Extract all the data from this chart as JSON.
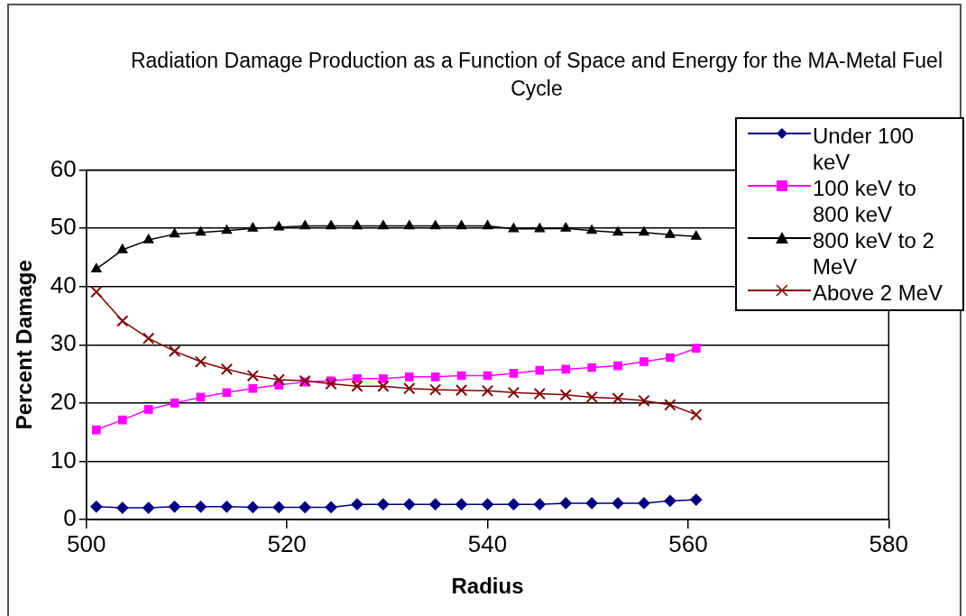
{
  "chart_data": {
    "type": "line",
    "title": "Radiation Damage Production as a Function of Space and Energy for the MA-Metal Fuel Cycle",
    "xlabel": "Radius",
    "ylabel": "Percent Damage",
    "x": [
      501.0,
      503.6,
      506.2,
      508.8,
      511.4,
      514.0,
      516.6,
      519.2,
      521.8,
      524.4,
      527.0,
      529.6,
      532.2,
      534.8,
      537.4,
      540.0,
      542.6,
      545.2,
      547.8,
      550.4,
      553.0,
      555.6,
      558.2,
      560.8
    ],
    "series": [
      {
        "name": "Under 100 keV",
        "color": "#000080",
        "marker": "diamond",
        "values": [
          2.2,
          2.0,
          2.0,
          2.2,
          2.2,
          2.2,
          2.1,
          2.1,
          2.1,
          2.1,
          2.6,
          2.6,
          2.6,
          2.6,
          2.6,
          2.6,
          2.6,
          2.6,
          2.8,
          2.8,
          2.8,
          2.8,
          3.2,
          3.4
        ]
      },
      {
        "name": "100 keV to 800 keV",
        "color": "#ff00ff",
        "marker": "square",
        "values": [
          15.4,
          17.1,
          18.9,
          20.0,
          21.0,
          21.8,
          22.5,
          23.1,
          23.6,
          23.8,
          24.2,
          24.2,
          24.5,
          24.5,
          24.7,
          24.7,
          25.1,
          25.6,
          25.8,
          26.1,
          26.4,
          27.1,
          27.8,
          29.4
        ]
      },
      {
        "name": "800 keV to 2 MeV",
        "color": "#000000",
        "marker": "triangle",
        "values": [
          43.0,
          46.3,
          48.0,
          49.0,
          49.3,
          49.6,
          50.0,
          50.2,
          50.4,
          50.4,
          50.4,
          50.4,
          50.4,
          50.4,
          50.4,
          50.4,
          49.9,
          49.9,
          50.0,
          49.6,
          49.3,
          49.3,
          48.9,
          48.6
        ]
      },
      {
        "name": "Above 2 MeV",
        "color": "#800000",
        "marker": "cross",
        "values": [
          39.1,
          34.1,
          31.1,
          28.9,
          27.1,
          25.8,
          24.7,
          24.0,
          23.8,
          23.3,
          22.9,
          22.9,
          22.5,
          22.3,
          22.2,
          22.1,
          21.8,
          21.6,
          21.4,
          21.0,
          20.8,
          20.4,
          19.7,
          18.0
        ]
      }
    ],
    "xlim": [
      500,
      580
    ],
    "xticks": [
      500,
      520,
      540,
      560,
      580
    ],
    "ylim": [
      0,
      60
    ],
    "yticks": [
      0,
      10,
      20,
      30,
      40,
      50,
      60
    ],
    "grid": "y",
    "legend": "top right",
    "line_style": "solid"
  }
}
